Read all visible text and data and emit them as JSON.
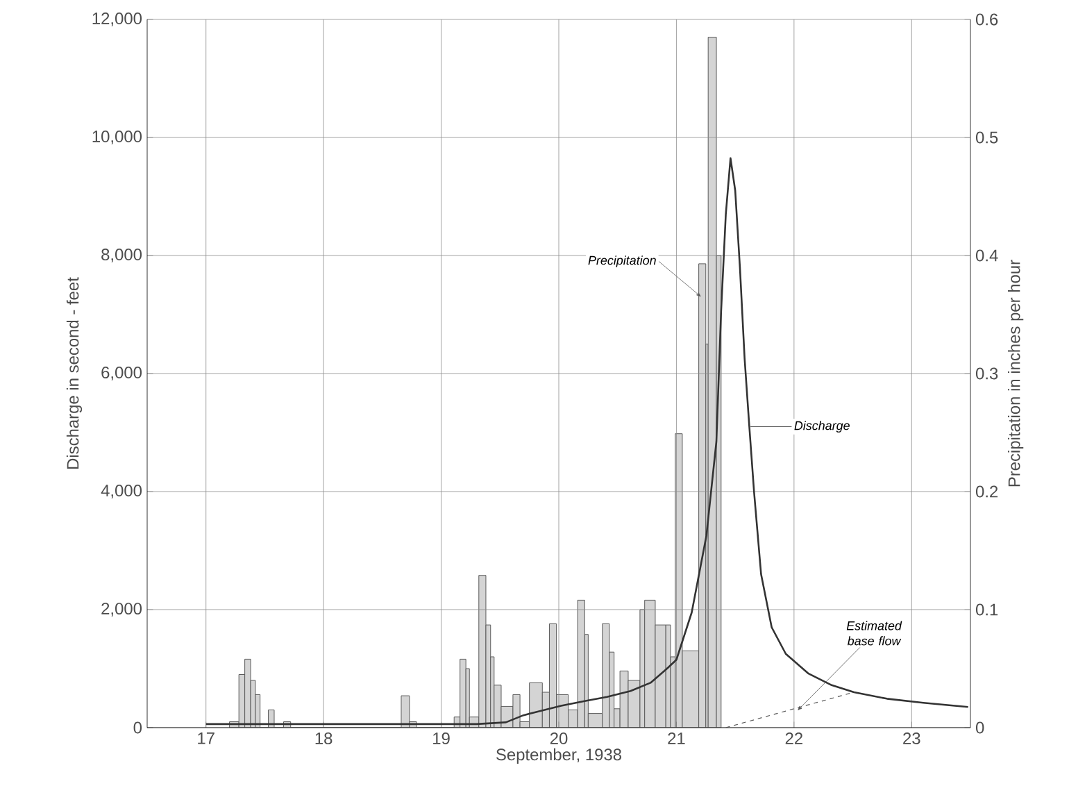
{
  "chart_data": {
    "type": "line",
    "xlabel": "September, 1938",
    "ylabel": "Discharge in second - feet",
    "y2label": "Precipitation in inches per hour",
    "xlim": [
      16.5,
      23.5
    ],
    "xticks": [
      17,
      18,
      19,
      20,
      21,
      22,
      23
    ],
    "ylim": [
      0,
      12000
    ],
    "yticks": [
      {
        "value": 0,
        "label": "0"
      },
      {
        "value": 2000,
        "label": "2,000"
      },
      {
        "value": 4000,
        "label": "4,000"
      },
      {
        "value": 6000,
        "label": "6,000"
      },
      {
        "value": 8000,
        "label": "8,000"
      },
      {
        "value": 10000,
        "label": "10,000"
      },
      {
        "value": 12000,
        "label": "12,000"
      }
    ],
    "y2lim": [
      0,
      0.6
    ],
    "y2ticks": [
      0,
      0.1,
      0.2,
      0.3,
      0.4,
      0.5,
      0.6
    ],
    "grid": true,
    "series": [
      {
        "name": "Precipitation",
        "type": "histogram",
        "axis": "y2",
        "color": "#d4d4d4",
        "bins": [
          17.2,
          17.28,
          17.33,
          17.38,
          17.42,
          17.46,
          17.53,
          17.58,
          17.66,
          17.72,
          18.66,
          18.73,
          18.79,
          19.11,
          19.16,
          19.21,
          19.24,
          19.32,
          19.38,
          19.42,
          19.45,
          19.51,
          19.61,
          19.67,
          19.75,
          19.86,
          19.92,
          19.98,
          20.08,
          20.16,
          20.22,
          20.25,
          20.37,
          20.43,
          20.47,
          20.52,
          20.59,
          20.69,
          20.73,
          20.82,
          20.91,
          20.95,
          20.99,
          21.05,
          21.19,
          21.25,
          21.27,
          21.34,
          21.38
        ],
        "values": [
          0.005,
          0.045,
          0.058,
          0.04,
          0.028,
          0,
          0.015,
          0,
          0.005,
          0,
          0.027,
          0.005,
          0,
          0.009,
          0.058,
          0.05,
          0.009,
          0.129,
          0.087,
          0.06,
          0.036,
          0.018,
          0.028,
          0.005,
          0.038,
          0.03,
          0.088,
          0.028,
          0.015,
          0.108,
          0.079,
          0.012,
          0.088,
          0.064,
          0.016,
          0.048,
          0.04,
          0.1,
          0.108,
          0.087,
          0.087,
          0.06,
          0.249,
          0.065,
          0.393,
          0.325,
          0.585,
          0.4
        ]
      },
      {
        "name": "Discharge",
        "color": "#333333",
        "x": [
          17.0,
          17.5,
          18.0,
          18.5,
          19.0,
          19.3,
          19.55,
          19.7,
          19.82,
          20.02,
          20.22,
          20.41,
          20.61,
          20.78,
          20.92,
          21.0,
          21.13,
          21.255,
          21.34,
          21.38,
          21.42,
          21.46,
          21.5,
          21.54,
          21.58,
          21.62,
          21.66,
          21.72,
          21.81,
          21.93,
          22.12,
          22.32,
          22.51,
          22.79,
          23.1,
          23.48
        ],
        "values": [
          60,
          60,
          60,
          60,
          60,
          60,
          90,
          210,
          270,
          370,
          450,
          520,
          620,
          760,
          1000,
          1150,
          1950,
          3250,
          4850,
          7050,
          8700,
          9650,
          9100,
          7800,
          6250,
          5100,
          4000,
          2600,
          1700,
          1250,
          920,
          720,
          600,
          490,
          420,
          350
        ]
      },
      {
        "name": "Estimated base flow",
        "type": "line",
        "line_style": "dashed",
        "color": "#555555",
        "x": [
          21.42,
          22.51
        ],
        "values": [
          0,
          600
        ]
      }
    ]
  }
}
